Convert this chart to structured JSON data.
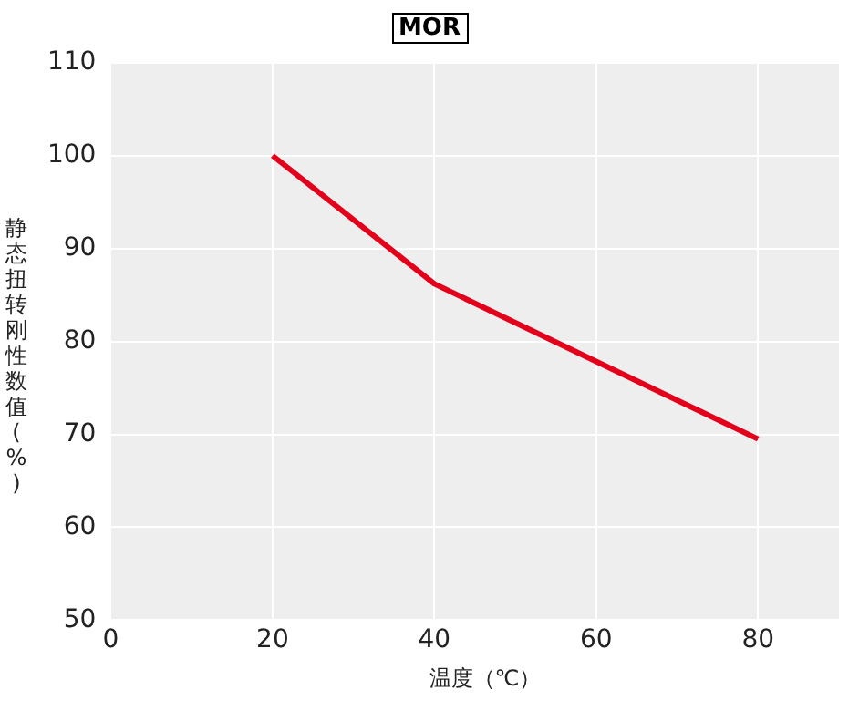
{
  "chart_data": {
    "type": "line",
    "title": "MOR",
    "xlabel": "温度（℃）",
    "ylabel": "静态扭转刚性数值(%)",
    "x": [
      20,
      40,
      80
    ],
    "series": [
      {
        "color": "#e3001b",
        "values": [
          100,
          86.2,
          69.5
        ]
      }
    ],
    "xlim": [
      0,
      90
    ],
    "xticks": [
      0,
      20,
      40,
      60,
      80
    ],
    "ylim": [
      50,
      110
    ],
    "yticks": [
      50,
      60,
      70,
      80,
      90,
      100,
      110
    ],
    "grid": true,
    "legend": false,
    "marker": "none",
    "line_style": "solid"
  }
}
